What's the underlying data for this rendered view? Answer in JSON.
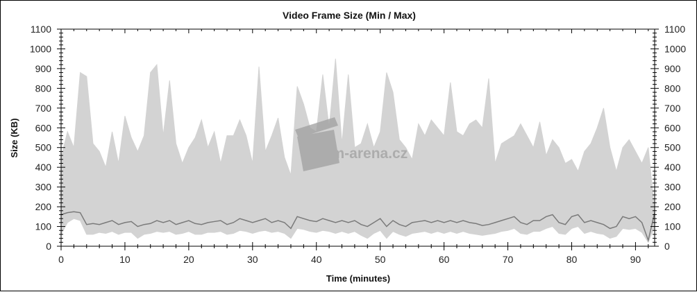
{
  "chart_data": {
    "type": "area",
    "title": "Video Frame Size (Min / Max)",
    "xlabel": "Time (minutes)",
    "ylabel": "Size (KB)",
    "xlim": [
      0,
      93
    ],
    "ylim": [
      0,
      1100
    ],
    "x_ticks": [
      0,
      10,
      20,
      30,
      40,
      50,
      60,
      70,
      80,
      90
    ],
    "y_ticks": [
      0,
      100,
      200,
      300,
      400,
      500,
      600,
      700,
      800,
      900,
      1000,
      1100
    ],
    "y_axis_right": true,
    "grid": false,
    "legend": "none",
    "colors": {
      "max_area": "#d3d3d3",
      "min_line": "#7a7a7a",
      "axis": "#000000",
      "watermark": "#a0a0a0"
    },
    "x": [
      0,
      1,
      2,
      3,
      4,
      5,
      6,
      7,
      8,
      9,
      10,
      11,
      12,
      13,
      14,
      15,
      16,
      17,
      18,
      19,
      20,
      21,
      22,
      23,
      24,
      25,
      26,
      27,
      28,
      29,
      30,
      31,
      32,
      33,
      34,
      35,
      36,
      37,
      38,
      39,
      40,
      41,
      42,
      43,
      44,
      45,
      46,
      47,
      48,
      49,
      50,
      51,
      52,
      53,
      54,
      55,
      56,
      57,
      58,
      59,
      60,
      61,
      62,
      63,
      64,
      65,
      66,
      67,
      68,
      69,
      70,
      71,
      72,
      73,
      74,
      75,
      76,
      77,
      78,
      79,
      80,
      81,
      82,
      83,
      84,
      85,
      86,
      87,
      88,
      89,
      90,
      91,
      92,
      93
    ],
    "series": [
      {
        "values": [
          450,
          580,
          500,
          880,
          860,
          520,
          480,
          400,
          580,
          420,
          660,
          550,
          480,
          560,
          880,
          920,
          560,
          840,
          520,
          420,
          500,
          550,
          640,
          500,
          580,
          420,
          560,
          560,
          640,
          560,
          420,
          910,
          480,
          560,
          650,
          450,
          360,
          810,
          720,
          600,
          580,
          870,
          600,
          950,
          520,
          870,
          500,
          520,
          620,
          500,
          580,
          880,
          780,
          540,
          500,
          440,
          620,
          560,
          640,
          600,
          560,
          830,
          580,
          560,
          620,
          640,
          600,
          850,
          420,
          520,
          540,
          560,
          620,
          560,
          500,
          630,
          460,
          540,
          500,
          420,
          440,
          380,
          480,
          520,
          600,
          700,
          500,
          380,
          500,
          540,
          480,
          420,
          500,
          180
        ]
      },
      {
        "values": [
          60,
          120,
          140,
          130,
          60,
          60,
          70,
          65,
          75,
          60,
          70,
          70,
          40,
          60,
          65,
          75,
          70,
          75,
          60,
          65,
          75,
          60,
          60,
          70,
          70,
          75,
          60,
          65,
          80,
          75,
          65,
          75,
          80,
          70,
          75,
          65,
          40,
          90,
          85,
          75,
          70,
          80,
          75,
          65,
          75,
          65,
          75,
          55,
          40,
          65,
          80,
          40,
          75,
          60,
          50,
          65,
          70,
          75,
          65,
          75,
          65,
          75,
          65,
          75,
          65,
          60,
          55,
          60,
          65,
          75,
          80,
          90,
          65,
          60,
          75,
          75,
          90,
          100,
          65,
          60,
          90,
          100,
          65,
          75,
          65,
          60,
          40,
          50,
          90,
          85,
          90,
          70,
          20,
          100
        ]
      },
      {
        "values": [
          160,
          170,
          175,
          170,
          110,
          115,
          110,
          120,
          130,
          110,
          120,
          125,
          100,
          110,
          115,
          130,
          120,
          130,
          110,
          120,
          130,
          115,
          110,
          120,
          125,
          130,
          110,
          120,
          140,
          130,
          120,
          130,
          140,
          120,
          130,
          120,
          90,
          150,
          140,
          130,
          125,
          140,
          130,
          120,
          130,
          120,
          130,
          110,
          100,
          120,
          140,
          100,
          130,
          110,
          100,
          120,
          125,
          130,
          120,
          130,
          120,
          130,
          120,
          130,
          120,
          115,
          105,
          110,
          120,
          130,
          140,
          150,
          120,
          110,
          130,
          130,
          150,
          160,
          120,
          110,
          150,
          160,
          120,
          130,
          120,
          110,
          90,
          100,
          150,
          140,
          150,
          120,
          30,
          170
        ]
      }
    ],
    "watermark": "Film-arena.cz"
  }
}
